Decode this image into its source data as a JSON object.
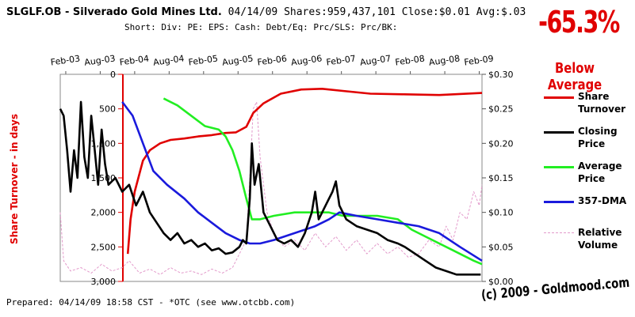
{
  "header": {
    "symbol": "SLGLF.OB",
    "company": " - Silverado Gold Mines Ltd.",
    "stats": " 04/14/09 Shares:959,437,101 Close:$0.01 Avg:$.03",
    "short_line": "Short: Div: PE: EPS: Cash: Debt/Eq: Prc/SLS: Prc/BK:"
  },
  "badge": {
    "percent": "-65.3%",
    "label": "Below Average",
    "color": "#e00000"
  },
  "footer": {
    "prepared": "Prepared: 04/14/09 18:58 CST  - *OTC (see www.otcbb.com)",
    "copyright": "(c) 2009 - Goldmood.com"
  },
  "chart_data": {
    "type": "line",
    "x_ticks": [
      "Feb-03",
      "Aug-03",
      "Feb-04",
      "Aug-04",
      "Feb-05",
      "Aug-05",
      "Feb-06",
      "Aug-06",
      "Feb-07",
      "Aug-07",
      "Feb-08",
      "Aug-08",
      "Feb-09"
    ],
    "y_left_label": "Share Turnover - in days",
    "y_left_ticks": [
      "0",
      "500",
      "1,000",
      "1,500",
      "2,000",
      "2,500",
      "3,000"
    ],
    "y_left_range": [
      0,
      3000
    ],
    "y_left_inverted": true,
    "y_right_ticks": [
      "$0.30",
      "$0.25",
      "$0.20",
      "$0.15",
      "$0.10",
      "$0.05",
      "$0.00"
    ],
    "y_right_range": [
      0,
      0.3
    ],
    "x_range": [
      2003.0,
      2009.12
    ],
    "grid": false,
    "legend_position": "right",
    "series": [
      {
        "name": "Share Turnover",
        "axis": "left",
        "color": "#e00000",
        "points": [
          [
            2003.98,
            2600
          ],
          [
            2004.02,
            2100
          ],
          [
            2004.08,
            1700
          ],
          [
            2004.2,
            1250
          ],
          [
            2004.3,
            1100
          ],
          [
            2004.45,
            1000
          ],
          [
            2004.6,
            950
          ],
          [
            2004.8,
            930
          ],
          [
            2005.0,
            900
          ],
          [
            2005.2,
            880
          ],
          [
            2005.4,
            850
          ],
          [
            2005.55,
            840
          ],
          [
            2005.7,
            760
          ],
          [
            2005.8,
            560
          ],
          [
            2005.95,
            420
          ],
          [
            2006.2,
            280
          ],
          [
            2006.5,
            220
          ],
          [
            2006.8,
            210
          ],
          [
            2007.1,
            240
          ],
          [
            2007.5,
            280
          ],
          [
            2008.0,
            290
          ],
          [
            2008.5,
            300
          ],
          [
            2009.12,
            270
          ]
        ]
      },
      {
        "name": "Closing Price",
        "axis": "right",
        "color": "#000000",
        "points": [
          [
            2003.0,
            0.25
          ],
          [
            2003.05,
            0.24
          ],
          [
            2003.1,
            0.19
          ],
          [
            2003.15,
            0.13
          ],
          [
            2003.2,
            0.19
          ],
          [
            2003.25,
            0.15
          ],
          [
            2003.3,
            0.26
          ],
          [
            2003.35,
            0.18
          ],
          [
            2003.4,
            0.15
          ],
          [
            2003.45,
            0.24
          ],
          [
            2003.5,
            0.19
          ],
          [
            2003.55,
            0.14
          ],
          [
            2003.6,
            0.22
          ],
          [
            2003.65,
            0.17
          ],
          [
            2003.7,
            0.14
          ],
          [
            2003.8,
            0.15
          ],
          [
            2003.9,
            0.13
          ],
          [
            2004.0,
            0.14
          ],
          [
            2004.1,
            0.11
          ],
          [
            2004.2,
            0.13
          ],
          [
            2004.3,
            0.1
          ],
          [
            2004.4,
            0.085
          ],
          [
            2004.5,
            0.07
          ],
          [
            2004.6,
            0.06
          ],
          [
            2004.7,
            0.07
          ],
          [
            2004.8,
            0.055
          ],
          [
            2004.9,
            0.06
          ],
          [
            2005.0,
            0.05
          ],
          [
            2005.1,
            0.055
          ],
          [
            2005.2,
            0.045
          ],
          [
            2005.3,
            0.048
          ],
          [
            2005.4,
            0.04
          ],
          [
            2005.5,
            0.042
          ],
          [
            2005.6,
            0.05
          ],
          [
            2005.65,
            0.06
          ],
          [
            2005.7,
            0.055
          ],
          [
            2005.75,
            0.12
          ],
          [
            2005.78,
            0.2
          ],
          [
            2005.82,
            0.14
          ],
          [
            2005.88,
            0.17
          ],
          [
            2005.95,
            0.1
          ],
          [
            2006.05,
            0.08
          ],
          [
            2006.15,
            0.06
          ],
          [
            2006.25,
            0.055
          ],
          [
            2006.35,
            0.06
          ],
          [
            2006.45,
            0.05
          ],
          [
            2006.55,
            0.07
          ],
          [
            2006.65,
            0.1
          ],
          [
            2006.7,
            0.13
          ],
          [
            2006.75,
            0.09
          ],
          [
            2006.85,
            0.11
          ],
          [
            2006.95,
            0.13
          ],
          [
            2007.0,
            0.145
          ],
          [
            2007.05,
            0.11
          ],
          [
            2007.15,
            0.09
          ],
          [
            2007.3,
            0.08
          ],
          [
            2007.45,
            0.075
          ],
          [
            2007.6,
            0.07
          ],
          [
            2007.75,
            0.06
          ],
          [
            2007.9,
            0.055
          ],
          [
            2008.0,
            0.05
          ],
          [
            2008.15,
            0.04
          ],
          [
            2008.3,
            0.03
          ],
          [
            2008.45,
            0.02
          ],
          [
            2008.6,
            0.015
          ],
          [
            2008.75,
            0.01
          ],
          [
            2008.9,
            0.01
          ],
          [
            2009.1,
            0.01
          ]
        ]
      },
      {
        "name": "Average Price",
        "axis": "right",
        "color": "#22ee22",
        "points": [
          [
            2004.5,
            0.265
          ],
          [
            2004.7,
            0.255
          ],
          [
            2004.9,
            0.24
          ],
          [
            2005.1,
            0.225
          ],
          [
            2005.3,
            0.22
          ],
          [
            2005.4,
            0.21
          ],
          [
            2005.5,
            0.19
          ],
          [
            2005.6,
            0.16
          ],
          [
            2005.7,
            0.12
          ],
          [
            2005.78,
            0.09
          ],
          [
            2005.9,
            0.09
          ],
          [
            2006.1,
            0.095
          ],
          [
            2006.4,
            0.1
          ],
          [
            2006.7,
            0.1
          ],
          [
            2006.9,
            0.1
          ],
          [
            2007.1,
            0.095
          ],
          [
            2007.3,
            0.095
          ],
          [
            2007.6,
            0.095
          ],
          [
            2007.9,
            0.09
          ],
          [
            2008.1,
            0.075
          ],
          [
            2008.4,
            0.06
          ],
          [
            2008.7,
            0.045
          ],
          [
            2009.0,
            0.03
          ],
          [
            2009.12,
            0.025
          ]
        ]
      },
      {
        "name": "357-DMA",
        "axis": "right",
        "color": "#1a1adc",
        "points": [
          [
            2003.9,
            0.26
          ],
          [
            2004.05,
            0.24
          ],
          [
            2004.2,
            0.2
          ],
          [
            2004.35,
            0.16
          ],
          [
            2004.55,
            0.14
          ],
          [
            2004.8,
            0.12
          ],
          [
            2005.0,
            0.1
          ],
          [
            2005.2,
            0.085
          ],
          [
            2005.4,
            0.07
          ],
          [
            2005.6,
            0.06
          ],
          [
            2005.75,
            0.055
          ],
          [
            2005.9,
            0.055
          ],
          [
            2006.1,
            0.06
          ],
          [
            2006.4,
            0.07
          ],
          [
            2006.7,
            0.08
          ],
          [
            2006.9,
            0.09
          ],
          [
            2007.05,
            0.1
          ],
          [
            2007.3,
            0.095
          ],
          [
            2007.6,
            0.09
          ],
          [
            2007.9,
            0.085
          ],
          [
            2008.2,
            0.08
          ],
          [
            2008.5,
            0.07
          ],
          [
            2008.8,
            0.05
          ],
          [
            2009.12,
            0.03
          ]
        ]
      },
      {
        "name": "Relative Volume",
        "axis": "right",
        "color": "#e39acb",
        "dashed": true,
        "points": [
          [
            2003.0,
            0.1
          ],
          [
            2003.05,
            0.03
          ],
          [
            2003.15,
            0.015
          ],
          [
            2003.3,
            0.02
          ],
          [
            2003.45,
            0.012
          ],
          [
            2003.6,
            0.025
          ],
          [
            2003.75,
            0.015
          ],
          [
            2003.9,
            0.02
          ],
          [
            2004.0,
            0.03
          ],
          [
            2004.15,
            0.012
          ],
          [
            2004.3,
            0.018
          ],
          [
            2004.45,
            0.01
          ],
          [
            2004.6,
            0.02
          ],
          [
            2004.75,
            0.012
          ],
          [
            2004.9,
            0.015
          ],
          [
            2005.05,
            0.01
          ],
          [
            2005.2,
            0.018
          ],
          [
            2005.35,
            0.012
          ],
          [
            2005.5,
            0.02
          ],
          [
            2005.6,
            0.04
          ],
          [
            2005.7,
            0.06
          ],
          [
            2005.75,
            0.15
          ],
          [
            2005.8,
            0.25
          ],
          [
            2005.85,
            0.26
          ],
          [
            2005.9,
            0.18
          ],
          [
            2006.0,
            0.1
          ],
          [
            2006.1,
            0.07
          ],
          [
            2006.25,
            0.05
          ],
          [
            2006.4,
            0.06
          ],
          [
            2006.55,
            0.045
          ],
          [
            2006.7,
            0.07
          ],
          [
            2006.85,
            0.05
          ],
          [
            2007.0,
            0.065
          ],
          [
            2007.15,
            0.045
          ],
          [
            2007.3,
            0.06
          ],
          [
            2007.45,
            0.04
          ],
          [
            2007.6,
            0.055
          ],
          [
            2007.75,
            0.04
          ],
          [
            2007.9,
            0.05
          ],
          [
            2008.05,
            0.035
          ],
          [
            2008.2,
            0.04
          ],
          [
            2008.35,
            0.06
          ],
          [
            2008.5,
            0.05
          ],
          [
            2008.6,
            0.08
          ],
          [
            2008.7,
            0.06
          ],
          [
            2008.8,
            0.1
          ],
          [
            2008.9,
            0.09
          ],
          [
            2009.0,
            0.13
          ],
          [
            2009.08,
            0.11
          ],
          [
            2009.12,
            0.14
          ]
        ]
      }
    ]
  }
}
